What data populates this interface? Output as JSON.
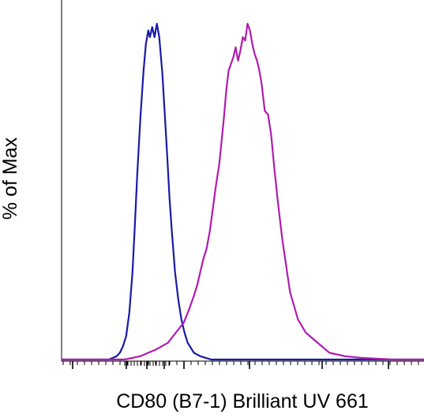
{
  "chart_data": {
    "type": "line",
    "title": "",
    "xlabel": "CD80 (B7-1) Brilliant UV 661",
    "ylabel": "% of Max",
    "x_scale": "biexponential",
    "tick_labels_shown": false,
    "ylim": [
      0,
      100
    ],
    "grid": false,
    "legend": "none",
    "series": [
      {
        "color": "#1a1aa6",
        "x": [
          0,
          60,
          70,
          74,
          78,
          82,
          86,
          90,
          93,
          96,
          100,
          104,
          107,
          110,
          112,
          115,
          118,
          121,
          124,
          128,
          131,
          134,
          137,
          140,
          144,
          148,
          152,
          156,
          160,
          168,
          176,
          183,
          190,
          200,
          220,
          250,
          300,
          380,
          460
        ],
        "y": [
          0,
          0,
          1,
          2,
          4,
          7,
          14,
          26,
          40,
          55,
          72,
          86,
          94,
          98,
          96,
          99,
          96,
          100,
          96,
          85,
          73,
          61,
          48,
          38,
          26,
          18,
          12,
          8,
          5,
          2,
          1,
          0.5,
          0,
          0,
          0,
          0,
          0,
          0,
          0
        ]
      },
      {
        "color": "#b01cb0",
        "x": [
          0,
          80,
          100,
          120,
          135,
          145,
          155,
          162,
          168,
          172,
          176,
          180,
          184,
          188,
          192,
          196,
          200,
          203,
          206,
          209,
          212,
          215,
          218,
          221,
          224,
          227,
          230,
          233,
          236,
          239,
          242,
          245,
          248,
          251,
          254,
          258,
          262,
          266,
          270,
          275,
          280,
          285,
          290,
          295,
          300,
          310,
          320,
          330,
          340,
          360,
          380,
          420,
          460
        ],
        "y": [
          0,
          0,
          1,
          3,
          5,
          8,
          11,
          15,
          19,
          22,
          26,
          30,
          33,
          38,
          45,
          52,
          58,
          65,
          72,
          80,
          86,
          88,
          90,
          93,
          89,
          92,
          96,
          95,
          100,
          98,
          94,
          91,
          89,
          86,
          82,
          74,
          73,
          67,
          57,
          46,
          36,
          28,
          20,
          16,
          12,
          8,
          6,
          4,
          2,
          1,
          0.5,
          0,
          0
        ]
      }
    ]
  }
}
